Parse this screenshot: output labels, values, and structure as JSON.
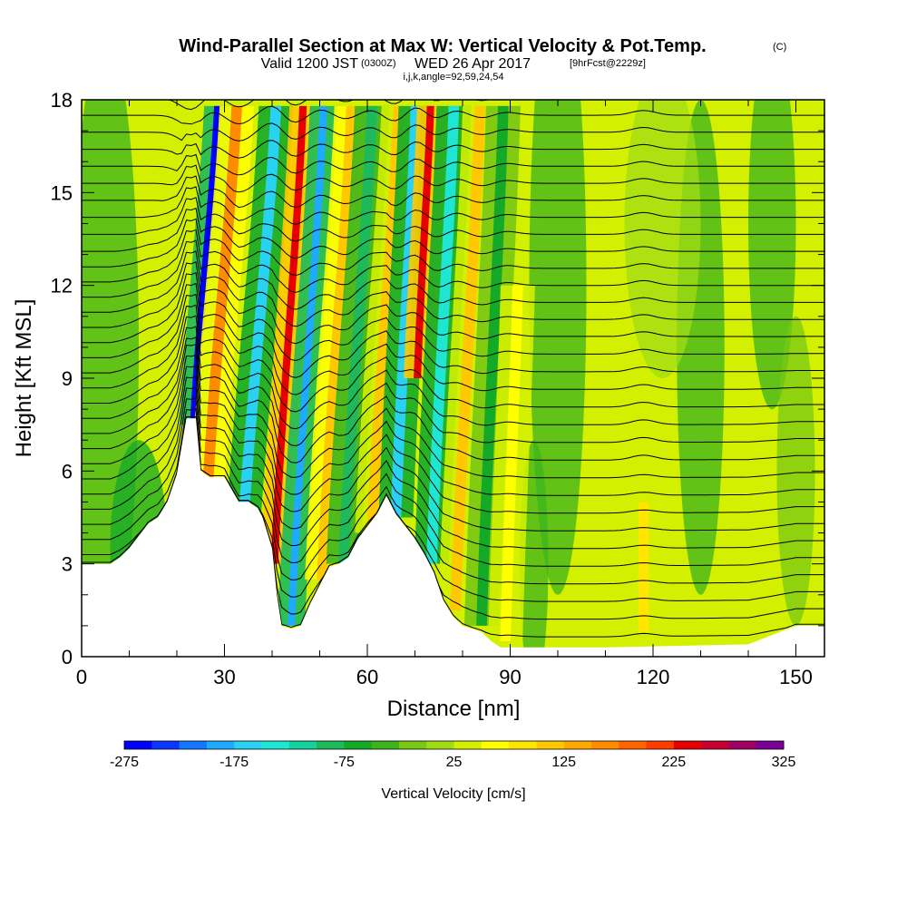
{
  "chart_data": {
    "type": "heatmap",
    "title": "Wind-Parallel Section at Max W: Vertical Velocity & Pot.Temp.",
    "title_mark": "(C)",
    "subtitle_valid": "Valid 1200 JST",
    "subtitle_utc": "(0300Z)",
    "subtitle_date": "WED 26 Apr 2017",
    "subtitle_fcst": "[9hrFcst@2229z]",
    "subtitle_params": "i,j,k,angle=92,59,24,54",
    "xlabel": "Distance [nm]",
    "ylabel": "Height [Kft MSL]",
    "xlim": [
      0,
      156
    ],
    "ylim": [
      0,
      18
    ],
    "x_ticks": [
      0,
      30,
      60,
      90,
      120,
      150
    ],
    "x_tick_labels": [
      "0",
      "30",
      "60",
      "90",
      "120",
      "150"
    ],
    "y_ticks": [
      0,
      3,
      6,
      9,
      12,
      15,
      18
    ],
    "y_tick_labels": [
      "0",
      "3",
      "6",
      "9",
      "12",
      "15",
      "18"
    ],
    "colorbar": {
      "label": "Vertical Velocity [cm/s]",
      "min": -275,
      "max": 325,
      "step": 25,
      "tick_labels": [
        "-275",
        "-175",
        "-75",
        "25",
        "125",
        "225",
        "325"
      ],
      "tick_values": [
        -275,
        -175,
        -75,
        25,
        125,
        225,
        325
      ],
      "colors": [
        "#0000ff",
        "#0a37ff",
        "#1478ff",
        "#1eaaff",
        "#28d2f0",
        "#1ee6d2",
        "#14d29b",
        "#1eb95a",
        "#14aa28",
        "#3cb41e",
        "#78c814",
        "#a0dc14",
        "#d2f000",
        "#ffff00",
        "#ffe600",
        "#ffc800",
        "#ffaa00",
        "#ff8c00",
        "#ff6400",
        "#ff3c00",
        "#e60000",
        "#c80032",
        "#a00064",
        "#780096"
      ]
    },
    "updraft_bands": [
      {
        "x": 23.5,
        "w": -270,
        "top": 17.8,
        "bottom": 7.5,
        "tilt": 0.55
      },
      {
        "x": 26.5,
        "w": 150,
        "top": 17.8,
        "bottom": 5.5,
        "tilt": 0.55
      },
      {
        "x": 33.0,
        "w": -170,
        "top": 17.8,
        "bottom": 2.0,
        "tilt": 0.55
      },
      {
        "x": 40.5,
        "w": 230,
        "top": 17.8,
        "bottom": 3.0,
        "tilt": 0.45
      },
      {
        "x": 44.0,
        "w": -200,
        "top": 17.8,
        "bottom": 1.0,
        "tilt": 0.45
      },
      {
        "x": 50.5,
        "w": 120,
        "top": 17.8,
        "bottom": 2.5,
        "tilt": 0.45
      },
      {
        "x": 55.0,
        "w": -90,
        "top": 17.8,
        "bottom": 3.0,
        "tilt": 0.45
      },
      {
        "x": 61.0,
        "w": 110,
        "top": 17.8,
        "bottom": 4.0,
        "tilt": 0.45
      },
      {
        "x": 66.0,
        "w": -160,
        "top": 17.8,
        "bottom": 4.5,
        "tilt": 0.35
      },
      {
        "x": 70.5,
        "w": 240,
        "top": 17.8,
        "bottom": 9.0,
        "tilt": 0.35
      },
      {
        "x": 73.5,
        "w": -150,
        "top": 17.8,
        "bottom": 3.0,
        "tilt": 0.35
      },
      {
        "x": 78.5,
        "w": 100,
        "top": 17.8,
        "bottom": 1.5,
        "tilt": 0.35
      },
      {
        "x": 84.0,
        "w": -60,
        "top": 17.8,
        "bottom": 1.0,
        "tilt": 0.3
      },
      {
        "x": 89.0,
        "w": 60,
        "top": 12.0,
        "bottom": 0.5,
        "tilt": 0.25
      },
      {
        "x": 118.0,
        "w": 90,
        "top": 5.0,
        "bottom": 0.8,
        "tilt": 0.0
      }
    ],
    "terrain": [
      [
        0,
        3.0
      ],
      [
        6,
        3.0
      ],
      [
        8,
        3.2
      ],
      [
        10,
        3.5
      ],
      [
        12,
        3.9
      ],
      [
        14,
        4.3
      ],
      [
        16,
        4.5
      ],
      [
        18,
        5.0
      ],
      [
        20,
        5.9
      ],
      [
        22,
        7.7
      ],
      [
        24,
        7.7
      ],
      [
        25,
        6.0
      ],
      [
        27,
        5.8
      ],
      [
        30,
        5.8
      ],
      [
        33,
        5.0
      ],
      [
        35,
        5.0
      ],
      [
        37,
        4.8
      ],
      [
        38,
        4.5
      ],
      [
        40,
        3.5
      ],
      [
        41,
        2.0
      ],
      [
        42,
        1.0
      ],
      [
        44,
        0.9
      ],
      [
        46,
        1.0
      ],
      [
        48,
        1.7
      ],
      [
        50,
        2.3
      ],
      [
        52,
        2.9
      ],
      [
        54,
        3.0
      ],
      [
        56,
        3.2
      ],
      [
        58,
        3.8
      ],
      [
        60,
        4.2
      ],
      [
        62,
        4.6
      ],
      [
        64,
        5.2
      ],
      [
        66,
        4.6
      ],
      [
        68,
        4.2
      ],
      [
        70,
        3.8
      ],
      [
        72,
        3.3
      ],
      [
        74,
        2.7
      ],
      [
        76,
        1.8
      ],
      [
        78,
        1.3
      ],
      [
        80,
        1.0
      ],
      [
        84,
        0.8
      ],
      [
        86,
        0.5
      ],
      [
        88,
        0.3
      ],
      [
        90,
        0.3
      ],
      [
        110,
        0.3
      ],
      [
        140,
        0.4
      ],
      [
        150,
        1.0
      ],
      [
        156,
        1.0
      ]
    ],
    "isentropes_count": 32
  }
}
